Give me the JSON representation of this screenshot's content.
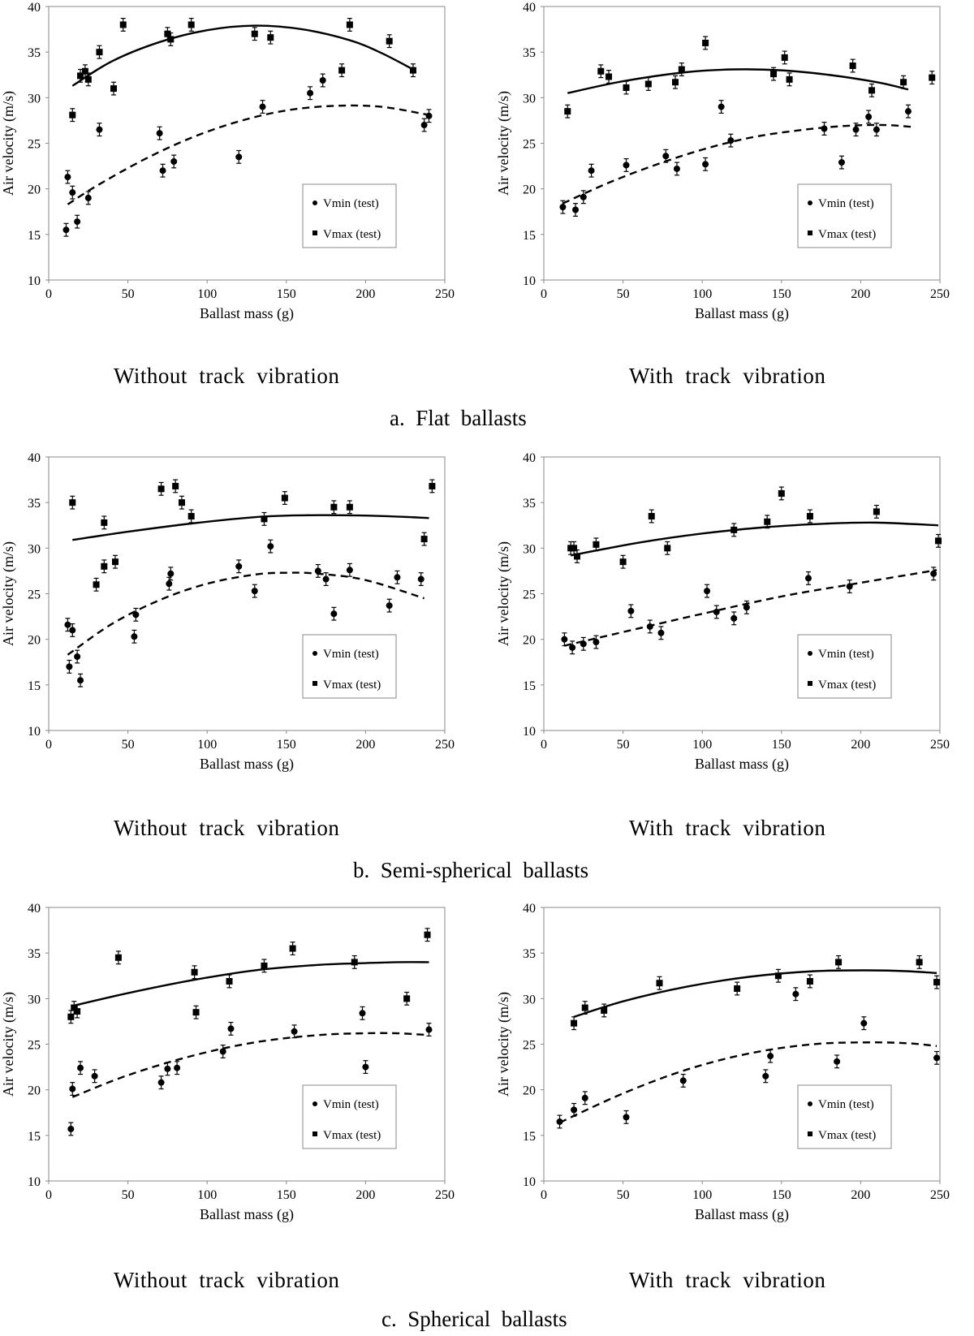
{
  "common": {
    "xlabel": "Ballast mass (g)",
    "ylabel": "Air velocity (m/s)",
    "legend_min": "Vmin (test)",
    "legend_max": "Vmax (test)",
    "xlim": [
      0,
      250
    ],
    "ylim": [
      10,
      40
    ],
    "xticks": [
      0,
      50,
      100,
      150,
      200,
      250
    ],
    "yticks": [
      10,
      15,
      20,
      25,
      30,
      35,
      40
    ]
  },
  "captions": {
    "row_a": "a.  Flat  ballasts",
    "row_b": "b.  Semi-spherical  ballasts",
    "row_c": "c.  Spherical  ballasts"
  },
  "chart_data": [
    {
      "type": "scatter",
      "panel": "a-left",
      "subtitle": "Without  track  vibration",
      "xlabel": "Ballast mass (g)",
      "ylabel": "Air velocity (m/s)",
      "xlim": [
        0,
        250
      ],
      "ylim": [
        10,
        40
      ],
      "legend": "lower-right",
      "series": [
        {
          "name": "Vmin (test)",
          "marker": "circle",
          "x": [
            11,
            12,
            15,
            18,
            25,
            32,
            70,
            72,
            79,
            120,
            135,
            165,
            173,
            237,
            240
          ],
          "y": [
            15.5,
            21.3,
            19.6,
            16.4,
            19.0,
            26.5,
            26.1,
            22.0,
            23.0,
            23.5,
            29.0,
            30.5,
            31.9,
            27.0,
            28.0
          ]
        },
        {
          "name": "Vmax (test)",
          "marker": "square",
          "x": [
            15,
            20,
            23,
            25,
            32,
            41,
            47,
            75,
            77,
            90,
            130,
            140,
            185,
            190,
            215,
            230
          ],
          "y": [
            28.1,
            32.4,
            32.9,
            32.0,
            35.0,
            31.0,
            38.0,
            37.0,
            36.4,
            38.0,
            37.0,
            36.6,
            33.0,
            38.0,
            36.2,
            33.0
          ]
        }
      ],
      "fits": [
        {
          "series": "Vmin (test)",
          "style": "dashed",
          "x": [
            12,
            30,
            60,
            90,
            120,
            150,
            180,
            210,
            240
          ],
          "y": [
            18.3,
            20.3,
            23.2,
            25.6,
            27.4,
            28.6,
            29.1,
            29.0,
            28.1
          ]
        },
        {
          "series": "Vmax (test)",
          "style": "solid",
          "x": [
            15,
            40,
            70,
            100,
            130,
            160,
            190,
            210,
            230
          ],
          "y": [
            31.3,
            34.0,
            36.1,
            37.4,
            37.9,
            37.5,
            36.3,
            34.9,
            33.1
          ]
        }
      ]
    },
    {
      "type": "scatter",
      "panel": "a-right",
      "subtitle": "With  track  vibration",
      "xlabel": "Ballast mass (g)",
      "ylabel": "Air velocity (m/s)",
      "xlim": [
        0,
        250
      ],
      "ylim": [
        10,
        40
      ],
      "legend": "lower-right",
      "series": [
        {
          "name": "Vmin (test)",
          "marker": "circle",
          "x": [
            12,
            20,
            25,
            30,
            52,
            77,
            84,
            102,
            112,
            118,
            177,
            188,
            197,
            205,
            210,
            230
          ],
          "y": [
            18.0,
            17.7,
            19.1,
            22.0,
            22.6,
            23.6,
            22.2,
            22.7,
            29.0,
            25.3,
            26.6,
            22.9,
            26.5,
            27.9,
            26.5,
            28.5
          ]
        },
        {
          "name": "Vmax (test)",
          "marker": "square",
          "x": [
            15,
            36,
            41,
            52,
            66,
            83,
            87,
            102,
            145,
            152,
            155,
            195,
            207,
            227,
            245
          ],
          "y": [
            28.5,
            32.9,
            32.3,
            31.1,
            31.5,
            31.7,
            33.1,
            36.0,
            32.6,
            34.4,
            32.0,
            33.5,
            30.8,
            31.7,
            32.2
          ]
        }
      ],
      "fits": [
        {
          "series": "Vmin (test)",
          "style": "dashed",
          "x": [
            12,
            40,
            70,
            100,
            130,
            160,
            190,
            215,
            232
          ],
          "y": [
            18.4,
            20.6,
            22.6,
            24.3,
            25.6,
            26.4,
            26.9,
            27.0,
            26.8
          ]
        },
        {
          "series": "Vmax (test)",
          "style": "solid",
          "x": [
            15,
            50,
            90,
            120,
            150,
            180,
            210,
            230
          ],
          "y": [
            30.5,
            31.8,
            32.8,
            33.1,
            33.0,
            32.5,
            31.7,
            30.9
          ]
        }
      ]
    },
    {
      "type": "scatter",
      "panel": "b-left",
      "subtitle": "Without  track  vibration",
      "xlabel": "Ballast mass (g)",
      "ylabel": "Air velocity (m/s)",
      "xlim": [
        0,
        250
      ],
      "ylim": [
        10,
        40
      ],
      "legend": "lower-right",
      "series": [
        {
          "name": "Vmin (test)",
          "marker": "circle",
          "x": [
            12,
            13,
            15,
            18,
            20,
            54,
            55,
            76,
            77,
            120,
            130,
            140,
            170,
            175,
            180,
            190,
            215,
            220,
            235
          ],
          "y": [
            21.6,
            17.0,
            21.0,
            18.1,
            15.5,
            20.3,
            22.7,
            26.1,
            27.2,
            28.0,
            25.3,
            30.2,
            27.5,
            26.6,
            22.8,
            27.6,
            23.7,
            26.8,
            26.6
          ]
        },
        {
          "name": "Vmax (test)",
          "marker": "square",
          "x": [
            15,
            30,
            35,
            35,
            42,
            71,
            80,
            84,
            90,
            136,
            149,
            180,
            190,
            237,
            242
          ],
          "y": [
            35.0,
            26.0,
            32.8,
            28.0,
            28.5,
            36.5,
            36.8,
            35.0,
            33.5,
            33.2,
            35.5,
            34.5,
            34.5,
            31.0,
            36.8
          ]
        }
      ],
      "fits": [
        {
          "series": "Vmin (test)",
          "style": "dashed",
          "x": [
            12,
            40,
            70,
            100,
            130,
            150,
            170,
            200,
            237
          ],
          "y": [
            18.3,
            21.7,
            24.3,
            26.1,
            27.1,
            27.3,
            27.2,
            26.5,
            24.5
          ]
        },
        {
          "series": "Vmax (test)",
          "style": "solid",
          "x": [
            15,
            50,
            90,
            130,
            160,
            190,
            215,
            240
          ],
          "y": [
            30.9,
            31.8,
            32.7,
            33.4,
            33.6,
            33.6,
            33.5,
            33.3
          ]
        }
      ]
    },
    {
      "type": "scatter",
      "panel": "b-right",
      "subtitle": "With  track  vibration",
      "xlabel": "Ballast mass (g)",
      "ylabel": "Air velocity (m/s)",
      "xlim": [
        0,
        250
      ],
      "ylim": [
        10,
        40
      ],
      "legend": "lower-right",
      "series": [
        {
          "name": "Vmin (test)",
          "marker": "circle",
          "x": [
            13,
            18,
            25,
            33,
            55,
            67,
            74,
            103,
            109,
            120,
            128,
            167,
            193,
            246
          ],
          "y": [
            20.0,
            19.1,
            19.5,
            19.7,
            23.1,
            21.4,
            20.7,
            25.3,
            23.0,
            22.3,
            23.5,
            26.7,
            25.8,
            27.2
          ]
        },
        {
          "name": "Vmax (test)",
          "marker": "square",
          "x": [
            17,
            19,
            21,
            33,
            50,
            68,
            78,
            120,
            141,
            150,
            168,
            210,
            249
          ],
          "y": [
            30.0,
            30.0,
            29.1,
            30.4,
            28.5,
            33.5,
            30.0,
            32.0,
            32.9,
            36.0,
            33.5,
            34.0,
            30.8
          ]
        }
      ],
      "fits": [
        {
          "series": "Vmin (test)",
          "style": "dashed",
          "x": [
            13,
            60,
            100,
            150,
            200,
            248
          ],
          "y": [
            19.3,
            21.2,
            22.8,
            24.7,
            26.2,
            27.6
          ]
        },
        {
          "series": "Vmax (test)",
          "style": "solid",
          "x": [
            17,
            60,
            100,
            140,
            180,
            210,
            249
          ],
          "y": [
            29.2,
            30.6,
            31.6,
            32.3,
            32.7,
            32.8,
            32.5
          ]
        }
      ]
    },
    {
      "type": "scatter",
      "panel": "c-left",
      "subtitle": "Without  track  vibration",
      "xlabel": "Ballast mass (g)",
      "ylabel": "Air velocity (m/s)",
      "xlim": [
        0,
        250
      ],
      "ylim": [
        10,
        40
      ],
      "legend": "lower-right",
      "series": [
        {
          "name": "Vmin (test)",
          "marker": "circle",
          "x": [
            14,
            15,
            20,
            29,
            71,
            75,
            81,
            110,
            115,
            155,
            198,
            200,
            240
          ],
          "y": [
            15.7,
            20.1,
            22.4,
            21.5,
            20.8,
            22.3,
            22.4,
            24.2,
            26.7,
            26.4,
            28.4,
            22.5,
            26.6
          ]
        },
        {
          "name": "Vmax (test)",
          "marker": "square",
          "x": [
            14,
            16,
            18,
            44,
            92,
            93,
            114,
            136,
            154,
            193,
            226,
            239
          ],
          "y": [
            28.0,
            29.0,
            28.6,
            34.5,
            32.9,
            28.5,
            31.9,
            33.6,
            35.5,
            34.0,
            30.0,
            37.0
          ]
        }
      ],
      "fits": [
        {
          "series": "Vmin (test)",
          "style": "dashed",
          "x": [
            15,
            50,
            90,
            130,
            170,
            200,
            220,
            240
          ],
          "y": [
            19.2,
            21.6,
            23.7,
            25.2,
            26.0,
            26.2,
            26.2,
            26.0
          ]
        },
        {
          "series": "Vmax (test)",
          "style": "solid",
          "x": [
            15,
            50,
            90,
            130,
            170,
            200,
            220,
            240
          ],
          "y": [
            29.2,
            30.6,
            32.0,
            33.1,
            33.7,
            33.9,
            34.0,
            34.0
          ]
        }
      ]
    },
    {
      "type": "scatter",
      "panel": "c-right",
      "subtitle": "With  track  vibration",
      "xlabel": "Ballast mass (g)",
      "ylabel": "Air velocity (m/s)",
      "xlim": [
        0,
        250
      ],
      "ylim": [
        10,
        40
      ],
      "legend": "lower-right",
      "series": [
        {
          "name": "Vmin (test)",
          "marker": "circle",
          "x": [
            10,
            19,
            26,
            52,
            88,
            140,
            143,
            159,
            185,
            202,
            248
          ],
          "y": [
            16.5,
            17.8,
            19.1,
            17.0,
            21.0,
            21.5,
            23.7,
            30.5,
            23.1,
            27.3,
            23.5
          ]
        },
        {
          "name": "Vmax (test)",
          "marker": "square",
          "x": [
            19,
            26,
            38,
            73,
            122,
            148,
            168,
            186,
            237,
            248
          ],
          "y": [
            27.3,
            29.0,
            28.7,
            31.7,
            31.1,
            32.5,
            31.9,
            34.0,
            34.0,
            31.8
          ]
        }
      ],
      "fits": [
        {
          "series": "Vmin (test)",
          "style": "dashed",
          "x": [
            10,
            50,
            90,
            130,
            170,
            205,
            230,
            248
          ],
          "y": [
            16.4,
            19.6,
            22.2,
            24.0,
            25.0,
            25.2,
            25.1,
            24.8
          ]
        },
        {
          "series": "Vmax (test)",
          "style": "solid",
          "x": [
            19,
            50,
            90,
            130,
            170,
            205,
            230,
            248
          ],
          "y": [
            28.0,
            29.7,
            31.3,
            32.4,
            33.0,
            33.1,
            33.0,
            32.8
          ]
        }
      ]
    }
  ]
}
